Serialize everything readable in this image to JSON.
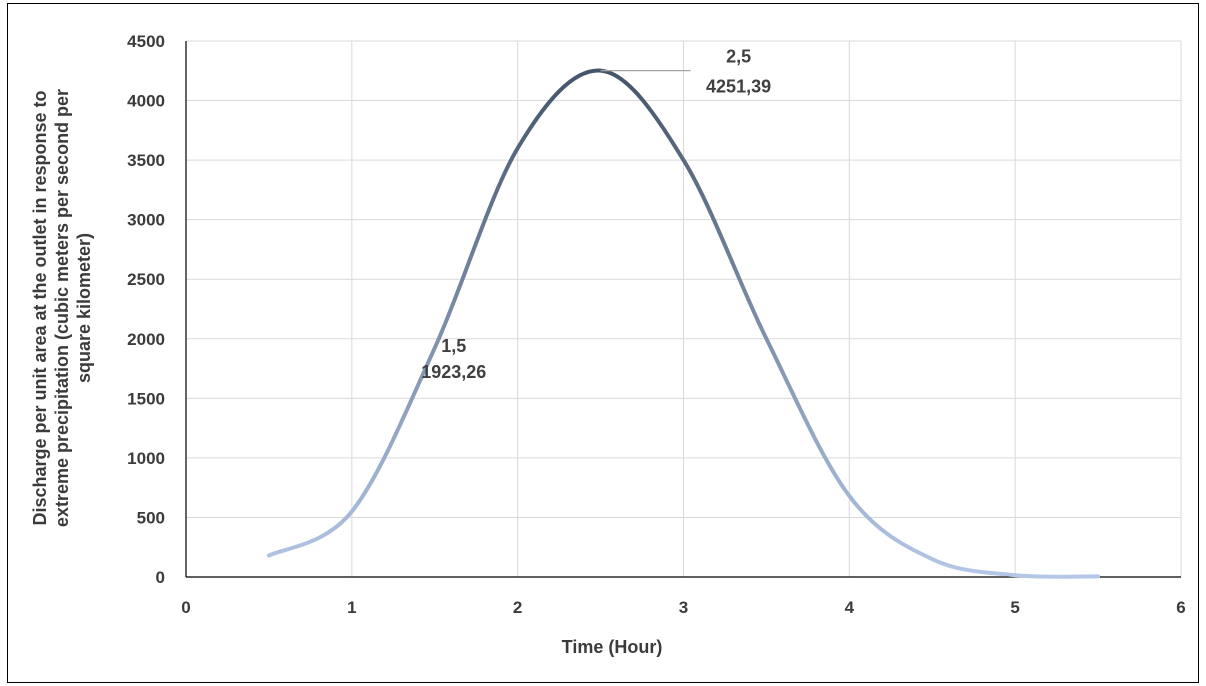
{
  "chart_data": {
    "type": "line",
    "x": [
      0.5,
      1.0,
      1.5,
      2.0,
      2.5,
      3.0,
      3.5,
      4.0,
      4.5,
      5.0,
      5.5
    ],
    "series": [
      {
        "values": [
          180,
          550,
          1923.26,
          3600,
          4251.39,
          3500,
          2000,
          680,
          150,
          15,
          5
        ]
      }
    ],
    "xlim": [
      0,
      6
    ],
    "ylim": [
      0,
      4500
    ],
    "x_ticks": [
      "0",
      "1",
      "2",
      "3",
      "4",
      "5",
      "6"
    ],
    "y_ticks": [
      "0",
      "500",
      "1000",
      "1500",
      "2000",
      "2500",
      "3000",
      "3500",
      "4000",
      "4500"
    ],
    "xlabel": "Time (Hour)",
    "ylabel_lines": [
      "Discharge per unit area at the outlet in response to",
      "extreme precipitation (cubic meters per second per",
      "square kilometer)"
    ],
    "grid": true,
    "line_gradient": {
      "low": "#b4c7e7",
      "high": "#44546a"
    },
    "annotations": [
      {
        "x": 1.5,
        "y": 1923.26,
        "lines": [
          "1,5",
          "1923,26"
        ]
      },
      {
        "x": 2.5,
        "y": 4251.39,
        "lines": [
          "2,5",
          "4251,39"
        ]
      }
    ]
  }
}
